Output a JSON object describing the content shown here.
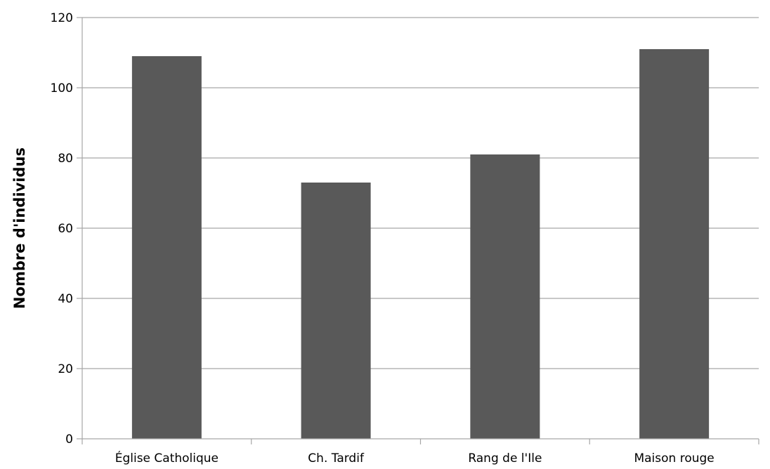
{
  "chart_data": {
    "type": "bar",
    "title": "",
    "xlabel": "",
    "ylabel": "Nombre d'individus",
    "categories": [
      "Église Catholique",
      "Ch. Tardif",
      "Rang de l'Ile",
      "Maison rouge"
    ],
    "values": [
      109,
      73,
      81,
      111
    ],
    "ylim": [
      0,
      120
    ],
    "yticks": [
      0,
      20,
      40,
      60,
      80,
      100,
      120
    ],
    "grid": true,
    "legend": "none",
    "bar_color": "#595959",
    "grid_color": "#a6a6a6"
  }
}
